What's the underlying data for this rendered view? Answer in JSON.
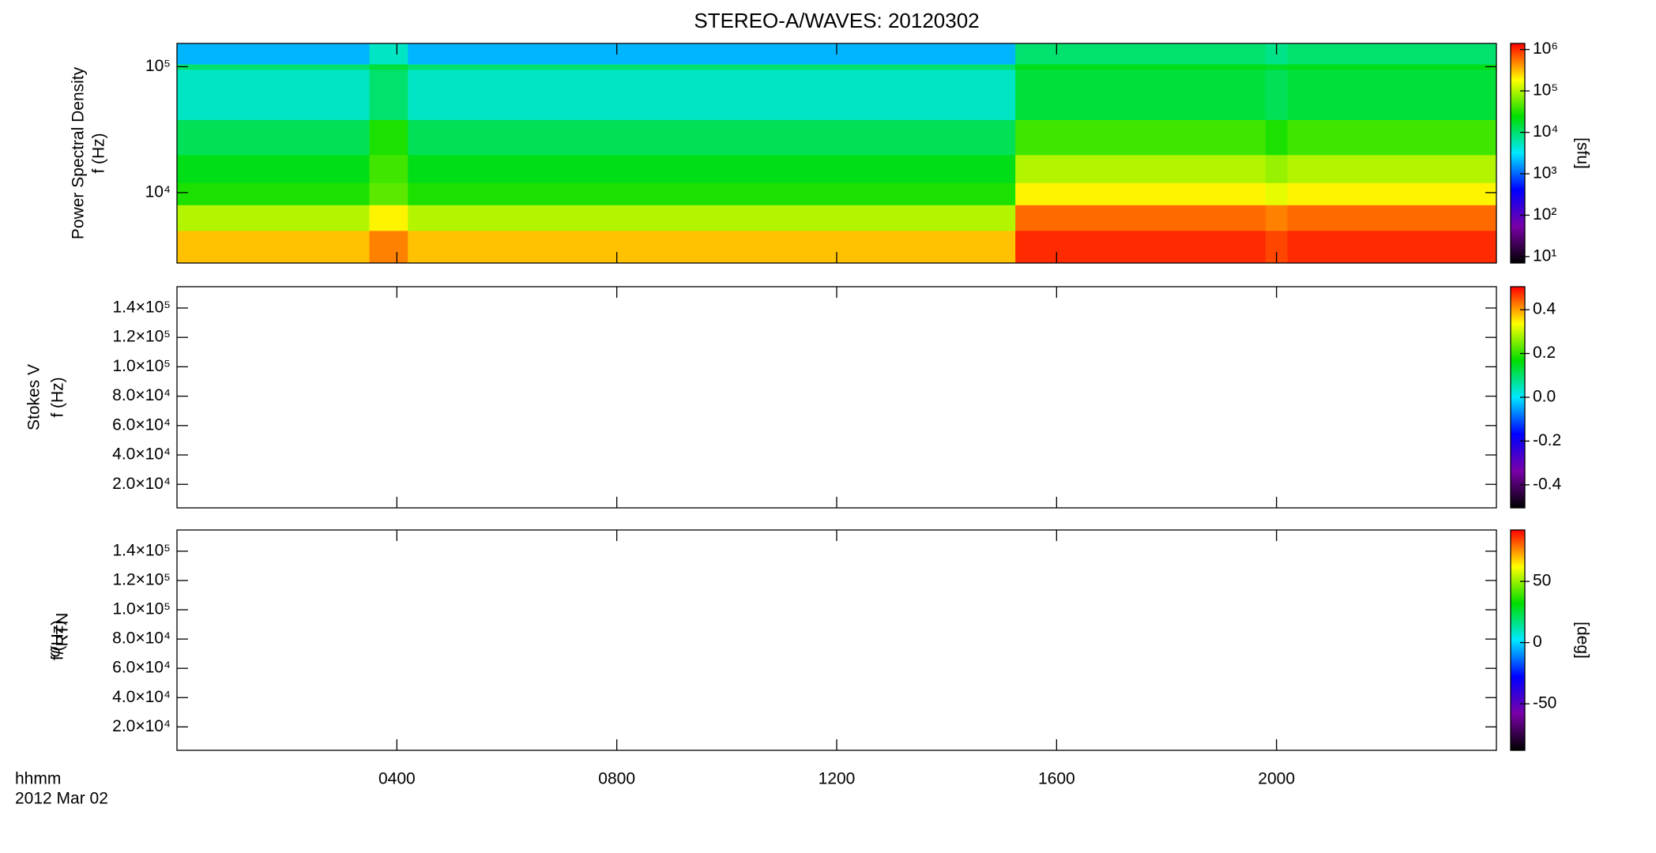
{
  "title": "STEREO-A/WAVES: 20120302",
  "chart_data": [
    {
      "type": "heatmap",
      "ylabel": "Power Spectral Density",
      "ylabel2": "f (Hz)",
      "yscale": "log",
      "ylim": [
        2760,
        153000
      ],
      "yticks": [
        {
          "value": 10000,
          "label": "10⁴"
        },
        {
          "value": 100000,
          "label": "10⁵"
        }
      ],
      "xlim": [
        0,
        24
      ],
      "x_edges": [
        0,
        3.5,
        4.2,
        15.25,
        19.8,
        20.2,
        24
      ],
      "y_edges": [
        2760,
        5000,
        8000,
        12000,
        20000,
        38000,
        95000,
        105000,
        153000
      ],
      "values": [
        [
          300000,
          500000,
          300000,
          1000000,
          800000,
          1000000
        ],
        [
          100000,
          200000,
          100000,
          600000,
          500000,
          600000
        ],
        [
          30000,
          50000,
          30000,
          200000,
          150000,
          200000
        ],
        [
          20000,
          40000,
          20000,
          100000,
          80000,
          100000
        ],
        [
          12000,
          30000,
          12000,
          40000,
          30000,
          40000
        ],
        [
          5000,
          10000,
          5000,
          15000,
          12000,
          15000
        ],
        [
          10000,
          15000,
          10000,
          20000,
          18000,
          20000
        ],
        [
          2000,
          5000,
          2000,
          10000,
          8000,
          10000
        ]
      ],
      "colorscale": [
        "#000000",
        "#7a00a8",
        "#0000ff",
        "#00e8ff",
        "#00dd00",
        "#ffff00",
        "#ff0000"
      ],
      "cscale": "log",
      "clim": [
        7,
        1400000
      ],
      "cticks": [
        {
          "value": 10,
          "label": "10¹"
        },
        {
          "value": 100,
          "label": "10²"
        },
        {
          "value": 1000,
          "label": "10³"
        },
        {
          "value": 10000,
          "label": "10⁴"
        },
        {
          "value": 100000,
          "label": "10⁵"
        },
        {
          "value": 1000000,
          "label": "10⁶"
        }
      ],
      "clabel": "[sfu]"
    },
    {
      "type": "heatmap",
      "ylabel": "Stokes V",
      "ylabel2": "f (Hz)",
      "yscale": "linear",
      "ylim": [
        4000,
        154500
      ],
      "yticks": [
        {
          "value": 20000,
          "label": "2.0×10⁴"
        },
        {
          "value": 40000,
          "label": "4.0×10⁴"
        },
        {
          "value": 60000,
          "label": "6.0×10⁴"
        },
        {
          "value": 80000,
          "label": "8.0×10⁴"
        },
        {
          "value": 100000,
          "label": "1.0×10⁵"
        },
        {
          "value": 120000,
          "label": "1.2×10⁵"
        },
        {
          "value": 140000,
          "label": "1.4×10⁵"
        }
      ],
      "xlim": [
        0,
        24
      ],
      "colorscale": [
        "#000000",
        "#7a00a8",
        "#0000ff",
        "#00e8ff",
        "#00dd00",
        "#ffff00",
        "#ff0000"
      ],
      "cscale": "linear",
      "clim": [
        -0.505,
        0.505
      ],
      "cticks": [
        -0.4,
        -0.2,
        {
          "value": 0,
          "label": "0.0"
        },
        0.2,
        0.4
      ]
    },
    {
      "type": "heatmap",
      "ylabel_symbol": "φ",
      "ylabel_subscript": "RTN",
      "ylabel2": "f (Hz)",
      "yscale": "linear",
      "ylim": [
        4000,
        154500
      ],
      "yticks": [
        {
          "value": 20000,
          "label": "2.0×10⁴"
        },
        {
          "value": 40000,
          "label": "4.0×10⁴"
        },
        {
          "value": 60000,
          "label": "6.0×10⁴"
        },
        {
          "value": 80000,
          "label": "8.0×10⁴"
        },
        {
          "value": 100000,
          "label": "1.0×10⁵"
        },
        {
          "value": 120000,
          "label": "1.2×10⁵"
        },
        {
          "value": 140000,
          "label": "1.4×10⁵"
        }
      ],
      "xlim": [
        0,
        24
      ],
      "xticks": [
        {
          "value": 4,
          "label": "0400"
        },
        {
          "value": 8,
          "label": "0800"
        },
        {
          "value": 12,
          "label": "1200"
        },
        {
          "value": 16,
          "label": "1600"
        },
        {
          "value": 20,
          "label": "2000"
        }
      ],
      "xlabel": "hhmm",
      "date": "2012 Mar 02",
      "colorscale": [
        "#000000",
        "#7a00a8",
        "#0000ff",
        "#00e8ff",
        "#00dd00",
        "#ffff00",
        "#ff0000"
      ],
      "cscale": "linear",
      "clim": [
        -88,
        92
      ],
      "cticks": [
        -50,
        0,
        50
      ],
      "clabel": "[deg]"
    }
  ]
}
